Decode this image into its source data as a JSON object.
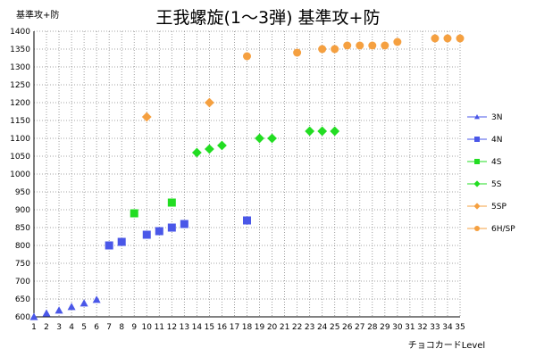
{
  "chart_data": {
    "type": "scatter",
    "title": "王我螺旋(1〜3弾) 基準攻+防",
    "ylabel": "基準攻+防",
    "xlabel": "チョコカードLevel",
    "xlim": [
      1,
      35
    ],
    "ylim": [
      600,
      1400
    ],
    "x_ticks": [
      1,
      2,
      3,
      4,
      5,
      6,
      7,
      8,
      9,
      10,
      11,
      12,
      13,
      14,
      15,
      16,
      17,
      18,
      19,
      20,
      21,
      22,
      23,
      24,
      25,
      26,
      27,
      28,
      29,
      30,
      31,
      32,
      33,
      34,
      35
    ],
    "y_ticks": [
      600,
      650,
      700,
      750,
      800,
      850,
      900,
      950,
      1000,
      1050,
      1100,
      1150,
      1200,
      1250,
      1300,
      1350,
      1400
    ],
    "grid": true,
    "legend_position": "right",
    "series": [
      {
        "name": "3N",
        "marker": "triangle",
        "color": "#4a57e8",
        "points": [
          [
            1,
            600
          ],
          [
            2,
            610
          ],
          [
            3,
            618
          ],
          [
            4,
            628
          ],
          [
            5,
            638
          ],
          [
            6,
            648
          ]
        ]
      },
      {
        "name": "4N",
        "marker": "square",
        "color": "#4a57e8",
        "points": [
          [
            7,
            800
          ],
          [
            8,
            810
          ],
          [
            10,
            830
          ],
          [
            11,
            840
          ],
          [
            12,
            850
          ],
          [
            13,
            860
          ],
          [
            18,
            870
          ]
        ]
      },
      {
        "name": "4S",
        "marker": "square",
        "color": "#22dd22",
        "points": [
          [
            9,
            890
          ],
          [
            12,
            920
          ]
        ]
      },
      {
        "name": "5S",
        "marker": "diamond",
        "color": "#22dd22",
        "points": [
          [
            14,
            1060
          ],
          [
            15,
            1070
          ],
          [
            16,
            1080
          ],
          [
            19,
            1100
          ],
          [
            20,
            1100
          ],
          [
            23,
            1120
          ],
          [
            24,
            1120
          ],
          [
            25,
            1120
          ]
        ]
      },
      {
        "name": "5SP",
        "marker": "diamond",
        "color": "#f5a040",
        "points": [
          [
            10,
            1160
          ],
          [
            15,
            1200
          ]
        ]
      },
      {
        "name": "6H/SP",
        "marker": "circle",
        "color": "#f5a040",
        "points": [
          [
            18,
            1330
          ],
          [
            22,
            1340
          ],
          [
            24,
            1350
          ],
          [
            25,
            1350
          ],
          [
            26,
            1360
          ],
          [
            27,
            1360
          ],
          [
            28,
            1360
          ],
          [
            29,
            1360
          ],
          [
            30,
            1370
          ],
          [
            33,
            1380
          ],
          [
            34,
            1380
          ],
          [
            35,
            1380
          ]
        ]
      }
    ]
  }
}
